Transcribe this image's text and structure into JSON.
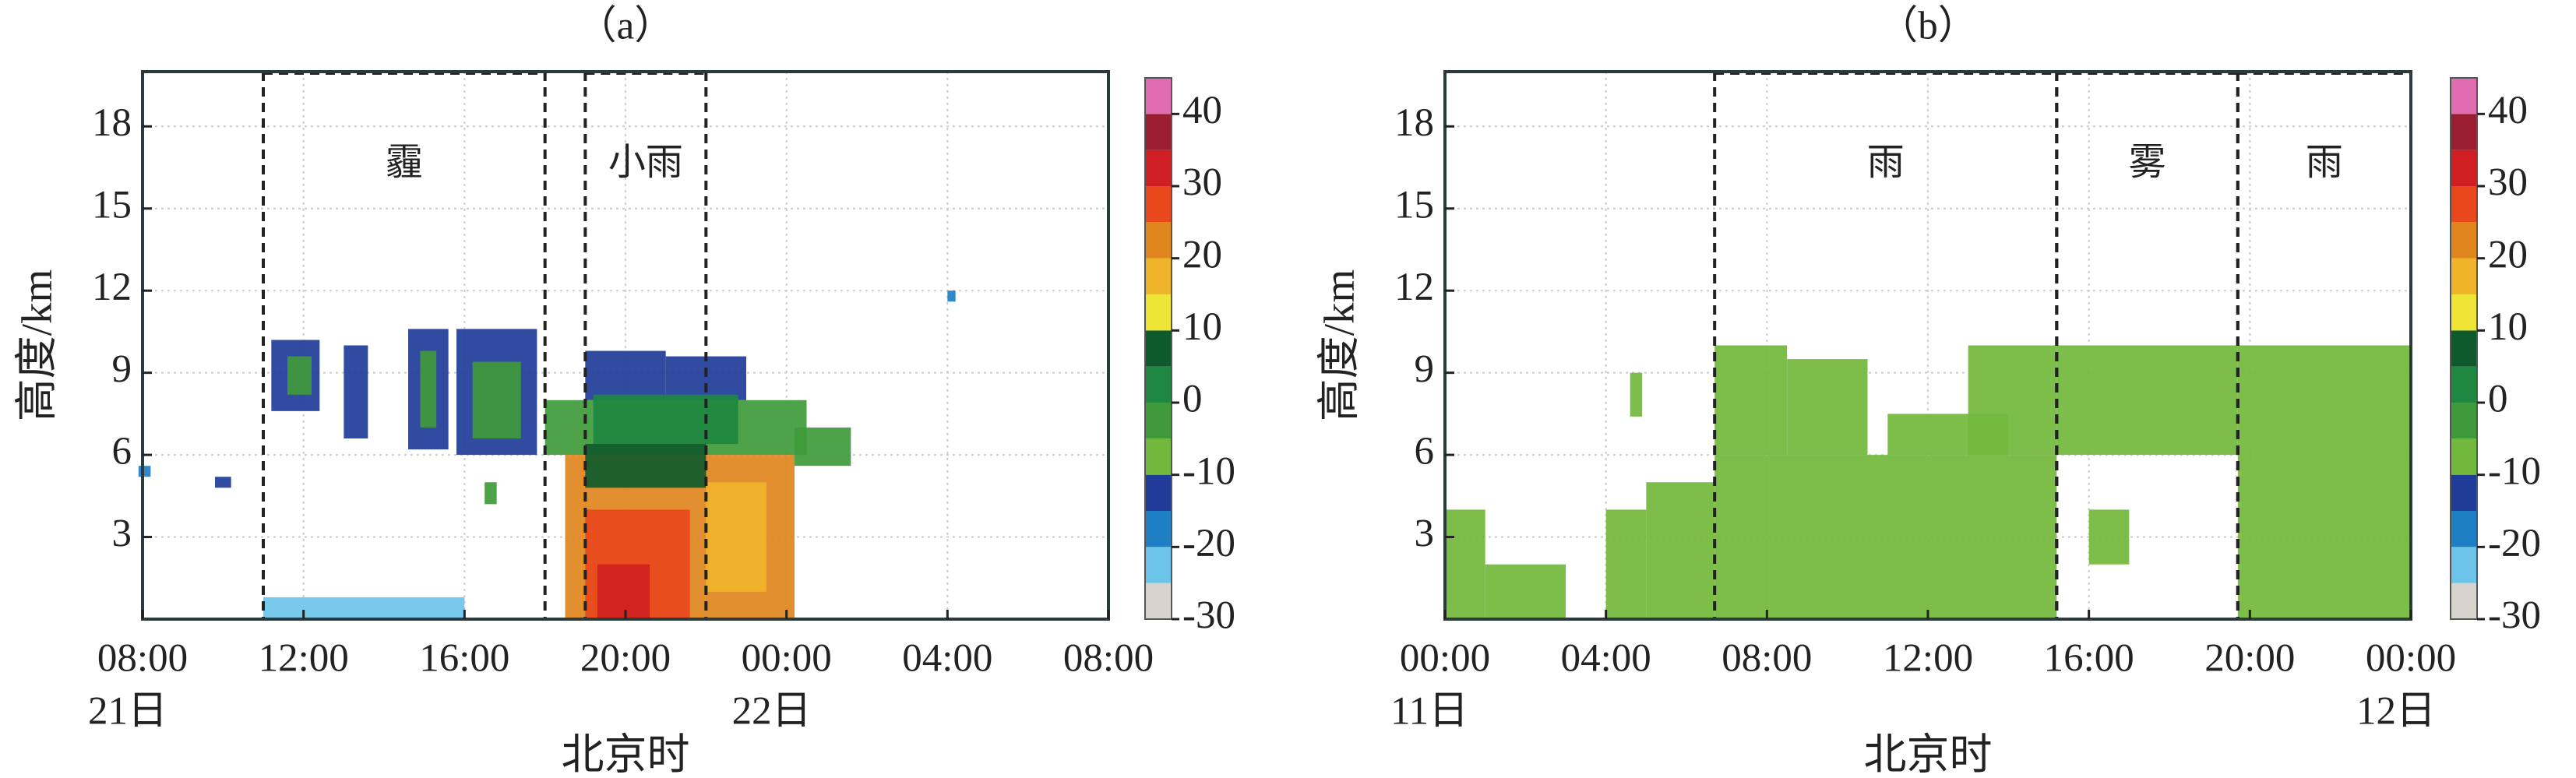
{
  "chart_data": [
    {
      "type": "heatmap",
      "title": "（a）",
      "xlabel": "北京时",
      "ylabel": "高度/km",
      "xlim": [
        0,
        24
      ],
      "xticks": [
        {
          "value": 0,
          "label": "08:00"
        },
        {
          "value": 4,
          "label": "12:00"
        },
        {
          "value": 8,
          "label": "16:00"
        },
        {
          "value": 12,
          "label": "20:00"
        },
        {
          "value": 16,
          "label": "00:00"
        },
        {
          "value": 20,
          "label": "04:00"
        },
        {
          "value": 24,
          "label": "08:00"
        }
      ],
      "date_labels": [
        {
          "value": 0,
          "label": "21日"
        },
        {
          "value": 16,
          "label": "22日"
        }
      ],
      "ylim": [
        0,
        20
      ],
      "yticks": [
        3,
        6,
        9,
        12,
        15,
        18
      ],
      "grid": true,
      "clim": [
        -30,
        45
      ],
      "cticks": [
        -30,
        -20,
        -10,
        0,
        10,
        20,
        30,
        40
      ],
      "colors": [
        "#d6d4cc",
        "#6cc4ea",
        "#1f7fc4",
        "#203c98",
        "#72b83c",
        "#3f9a3a",
        "#1e8840",
        "#0f5a2c",
        "#eee536",
        "#f0b42a",
        "#e0861e",
        "#e8481c",
        "#cf1f22",
        "#9a1d30",
        "#e06cb2"
      ],
      "cells": [
        [
          3.2,
          4.4,
          7.6,
          10.2,
          -15
        ],
        [
          3.6,
          4.2,
          8.2,
          9.6,
          -5
        ],
        [
          5.0,
          5.6,
          6.6,
          10.0,
          -15
        ],
        [
          6.6,
          7.6,
          6.2,
          10.6,
          -15
        ],
        [
          6.9,
          7.3,
          7.0,
          9.8,
          -5
        ],
        [
          7.8,
          9.8,
          6.0,
          10.6,
          -15
        ],
        [
          8.2,
          9.4,
          6.6,
          9.4,
          -5
        ],
        [
          8.5,
          8.8,
          4.2,
          5.0,
          -5
        ],
        [
          -0.1,
          0.2,
          5.2,
          5.6,
          -20
        ],
        [
          1.8,
          2.2,
          4.8,
          5.2,
          -15
        ],
        [
          3.0,
          8.0,
          0.0,
          0.8,
          -25
        ],
        [
          10.0,
          16.5,
          6.0,
          8.0,
          -5
        ],
        [
          11.0,
          13.0,
          8.0,
          9.8,
          -15
        ],
        [
          13.0,
          15.0,
          8.0,
          9.6,
          -15
        ],
        [
          11.2,
          14.8,
          6.4,
          8.2,
          0
        ],
        [
          10.5,
          16.2,
          0.0,
          6.0,
          20
        ],
        [
          11.0,
          14.0,
          4.8,
          6.4,
          5
        ],
        [
          11.0,
          13.6,
          0.0,
          4.0,
          25
        ],
        [
          11.3,
          12.6,
          0.0,
          2.0,
          30
        ],
        [
          14.0,
          15.5,
          1.0,
          5.0,
          15
        ],
        [
          16.2,
          17.6,
          5.6,
          7.0,
          -5
        ],
        [
          20.0,
          20.2,
          11.6,
          12.0,
          -20
        ]
      ],
      "events": [
        {
          "x0": 3,
          "x1": 10,
          "label": "霾"
        },
        {
          "x0": 11,
          "x1": 14,
          "label": "小雨"
        }
      ]
    },
    {
      "type": "heatmap",
      "title": "（b）",
      "xlabel": "北京时",
      "ylabel": "高度/km",
      "xlim": [
        0,
        24
      ],
      "xticks": [
        {
          "value": 0,
          "label": "00:00"
        },
        {
          "value": 4,
          "label": "04:00"
        },
        {
          "value": 8,
          "label": "08:00"
        },
        {
          "value": 12,
          "label": "12:00"
        },
        {
          "value": 16,
          "label": "16:00"
        },
        {
          "value": 20,
          "label": "20:00"
        },
        {
          "value": 24,
          "label": "00:00"
        }
      ],
      "date_labels": [
        {
          "value": 0,
          "label": "11日"
        },
        {
          "value": 24,
          "label": "12日"
        }
      ],
      "ylim": [
        0,
        20
      ],
      "yticks": [
        3,
        6,
        9,
        12,
        15,
        18
      ],
      "grid": true,
      "clim": [
        -30,
        45
      ],
      "cticks": [
        -30,
        -20,
        -10,
        0,
        10,
        20,
        30,
        40
      ],
      "colors": [
        "#d6d4cc",
        "#6cc4ea",
        "#1f7fc4",
        "#203c98",
        "#72b83c",
        "#3f9a3a",
        "#1e8840",
        "#0f5a2c",
        "#eee536",
        "#f0b42a",
        "#e0861e",
        "#e8481c",
        "#cf1f22",
        "#9a1d30",
        "#e06cb2"
      ],
      "cells": [
        [
          0.0,
          1.0,
          0.0,
          4.0,
          -8
        ],
        [
          1.0,
          3.0,
          0.0,
          2.0,
          -8
        ],
        [
          4.0,
          5.0,
          0.0,
          4.0,
          -8
        ],
        [
          5.0,
          6.7,
          0.0,
          5.0,
          -8
        ],
        [
          6.7,
          15.2,
          0.0,
          6.0,
          -8
        ],
        [
          6.7,
          8.5,
          6.0,
          10.0,
          -8
        ],
        [
          8.5,
          10.5,
          6.0,
          9.5,
          -8
        ],
        [
          11.0,
          14.0,
          6.0,
          7.5,
          -8
        ],
        [
          13.0,
          15.2,
          6.0,
          10.0,
          -8
        ],
        [
          15.2,
          19.7,
          6.0,
          10.0,
          -8
        ],
        [
          16.0,
          17.0,
          2.0,
          4.0,
          -8
        ],
        [
          19.7,
          24.0,
          0.0,
          10.0,
          -8
        ],
        [
          4.6,
          4.9,
          7.4,
          9.0,
          -8
        ]
      ],
      "events": [
        {
          "x0": 6.7,
          "x1": 15.2,
          "label": "雨"
        },
        {
          "x0": 15.2,
          "x1": 19.7,
          "label": "雾"
        },
        {
          "x0": 19.7,
          "x1": 24,
          "label": "雨"
        }
      ]
    }
  ]
}
